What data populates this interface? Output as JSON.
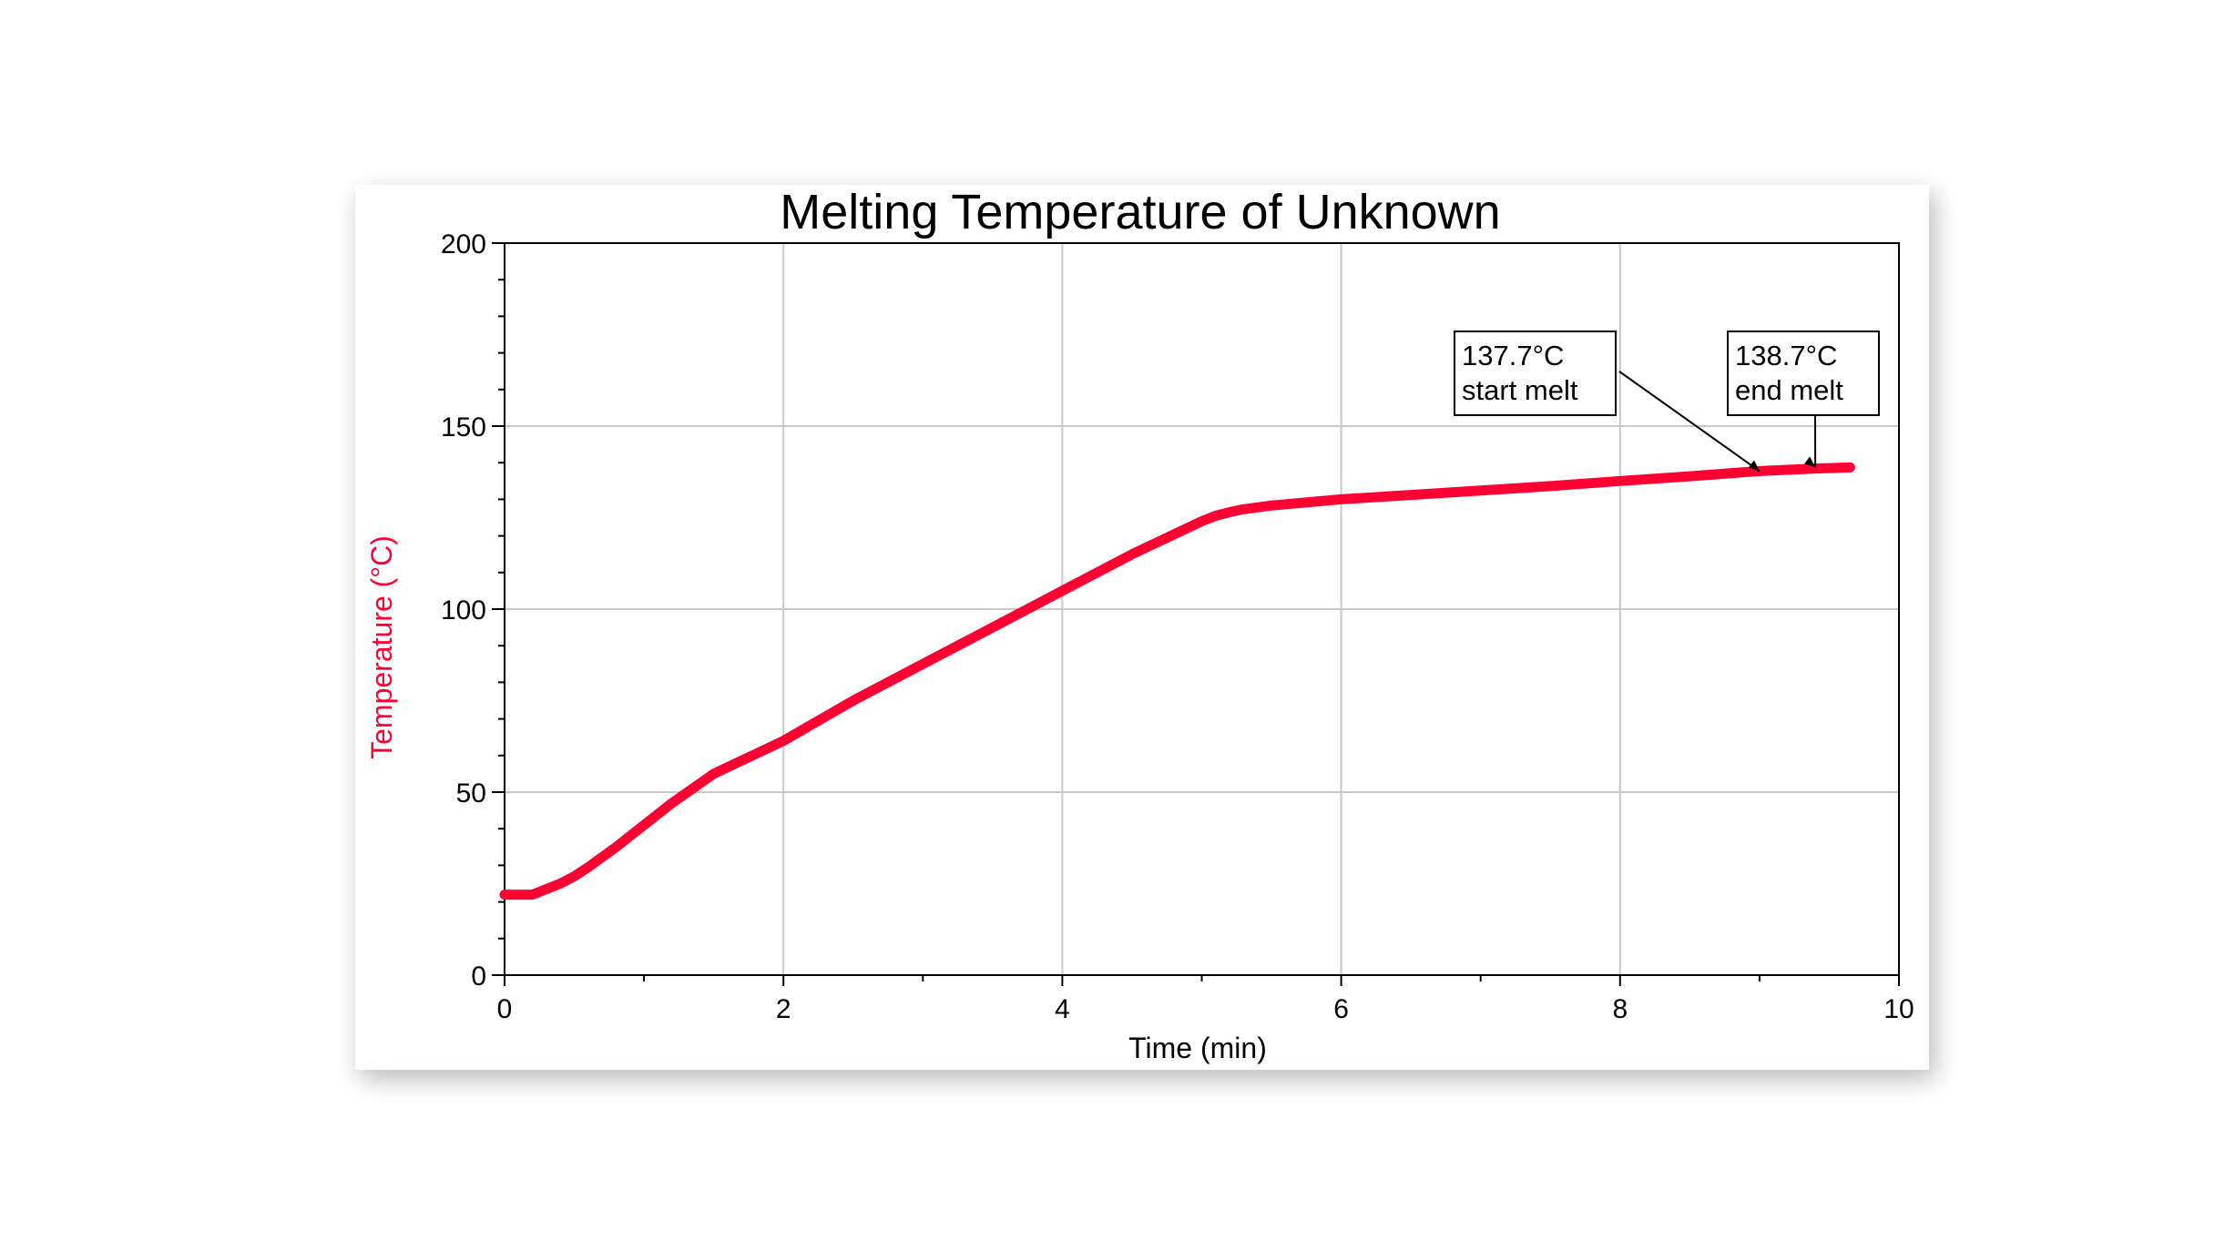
{
  "chart_data": {
    "type": "line",
    "title": "Melting Temperature of Unknown",
    "xlabel": "Time (min)",
    "ylabel": "Temperature (°C)",
    "xlim": [
      0,
      10
    ],
    "ylim": [
      0,
      200
    ],
    "x_ticks": [
      0,
      2,
      4,
      6,
      8,
      10
    ],
    "y_ticks": [
      0,
      50,
      100,
      150,
      200
    ],
    "x_minor_step": 1,
    "y_minor_step": 10,
    "grid": true,
    "series_color": "#ff0033",
    "ylabel_color": "#ff0033",
    "series": [
      {
        "x": [
          0,
          0.2,
          0.3,
          0.4,
          0.5,
          0.6,
          0.8,
          1.0,
          1.2,
          1.5,
          2.0,
          2.5,
          3.0,
          3.5,
          4.0,
          4.5,
          5.0,
          5.1,
          5.2,
          5.3,
          5.5,
          6.0,
          6.5,
          7.0,
          7.5,
          8.0,
          8.5,
          9.0,
          9.4,
          9.65
        ],
        "y": [
          22,
          22,
          23.5,
          25,
          27,
          29.5,
          35,
          41,
          47,
          55,
          64,
          75,
          85,
          95,
          105,
          115,
          124,
          125.5,
          126.5,
          127.3,
          128.3,
          130,
          131.2,
          132.4,
          133.6,
          135,
          136.3,
          137.7,
          138.4,
          138.7
        ]
      }
    ],
    "annotations": [
      {
        "value": "137.7°C",
        "label": "start melt",
        "x": 9.0,
        "y": 137.7
      },
      {
        "value": "138.7°C",
        "label": "end melt",
        "x": 9.4,
        "y": 138.7
      }
    ]
  }
}
